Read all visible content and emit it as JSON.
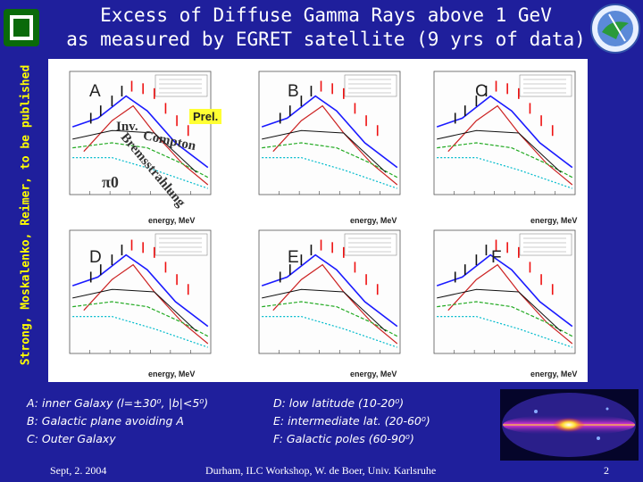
{
  "slide": {
    "title_line1": "Excess of Diffuse Gamma Rays above 1 GeV",
    "title_line2": "as measured by EGRET satellite (9 yrs of data)",
    "sidebar_text": "Strong, Moskalenko, Reimer, to be published",
    "colors": {
      "background": "#1f1f9c",
      "title": "#ffffff",
      "sidebar": "#ffff00"
    }
  },
  "figure": {
    "panels": [
      {
        "letter": "A",
        "xlabel": "energy, MeV"
      },
      {
        "letter": "B",
        "xlabel": "energy, MeV"
      },
      {
        "letter": "C",
        "xlabel": "energy, MeV"
      },
      {
        "letter": "D",
        "xlabel": "energy, MeV"
      },
      {
        "letter": "E",
        "xlabel": "energy, MeV"
      },
      {
        "letter": "F",
        "xlabel": "energy, MeV"
      }
    ],
    "prel_label": "Prel.",
    "curve_labels": {
      "inv": "Inv.",
      "compton": "Compton",
      "brems": "Bremsstrahlung",
      "pi0": "π0"
    }
  },
  "legend": {
    "left": [
      "A: inner Galaxy (l=±30⁰, |b|<5⁰)",
      "B: Galactic plane avoiding A",
      "C: Outer Galaxy"
    ],
    "right": [
      "D: low latitude (10-20⁰)",
      "E: intermediate lat. (20-60⁰)",
      "F: Galactic poles (60-90⁰)"
    ]
  },
  "footer": {
    "date": "Sept, 2. 2004",
    "center": "Durham, ILC Workshop, W. de Boer,  Univ. Karlsruhe",
    "page": "2"
  }
}
